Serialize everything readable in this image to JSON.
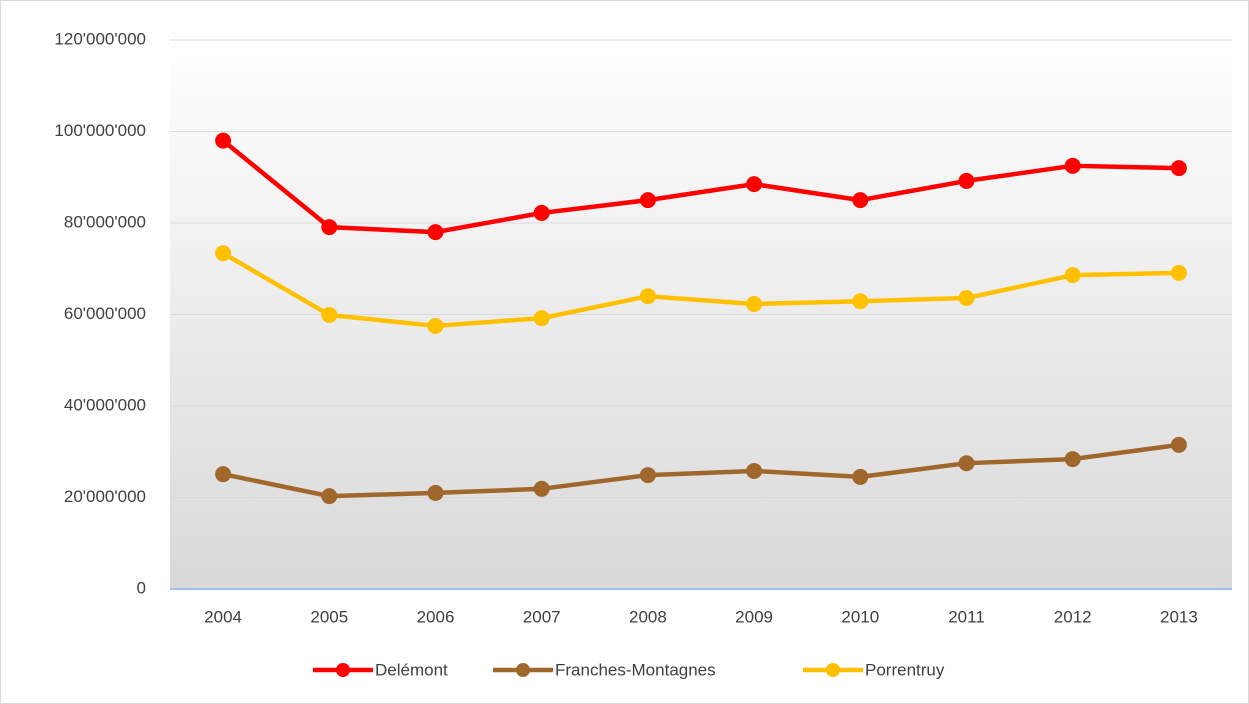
{
  "chart_data": {
    "type": "line",
    "categories": [
      "2004",
      "2005",
      "2006",
      "2007",
      "2008",
      "2009",
      "2010",
      "2011",
      "2012",
      "2013"
    ],
    "series": [
      {
        "name": "Delémont",
        "color": "#ff0000",
        "values": [
          98000000,
          79100000,
          78000000,
          82200000,
          85000000,
          88500000,
          85000000,
          89200000,
          92500000,
          92000000
        ]
      },
      {
        "name": "Franches-Montagnes",
        "color": "#a0672d",
        "values": [
          25100000,
          20300000,
          21000000,
          21900000,
          24900000,
          25800000,
          24500000,
          27500000,
          28400000,
          31500000
        ]
      },
      {
        "name": "Porrentruy",
        "color": "#ffc000",
        "values": [
          73400000,
          59900000,
          57500000,
          59200000,
          64000000,
          62300000,
          62900000,
          63600000,
          68600000,
          69100000
        ]
      }
    ],
    "ylim": [
      0,
      120000000
    ],
    "yticks": [
      0,
      {
        "value": 20000000,
        "label": "20'000'000"
      },
      {
        "value": 40000000,
        "label": "40'000'000"
      },
      {
        "value": 60000000,
        "label": "60'000'000"
      },
      {
        "value": 80000000,
        "label": "80'000'000"
      },
      {
        "value": 100000000,
        "label": "100'000'000"
      },
      {
        "value": 120000000,
        "label": "120'000'000"
      }
    ],
    "grid": true,
    "legend": "bottom"
  }
}
